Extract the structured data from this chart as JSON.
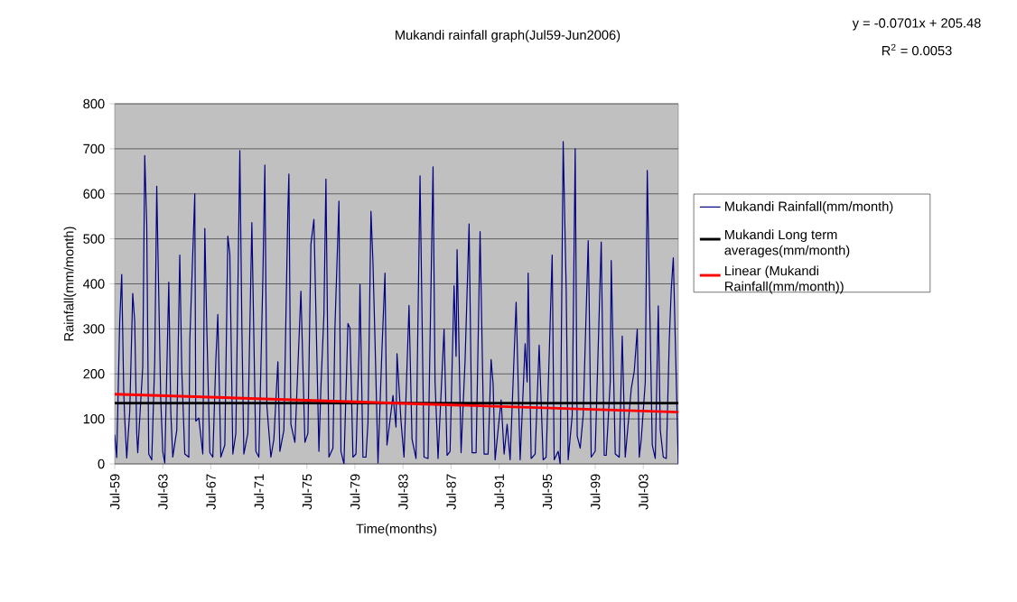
{
  "chart_data": {
    "type": "line",
    "title": "Mukandi rainfall graph(Jul59-Jun2006)",
    "xlabel": "Time(months)",
    "ylabel": "Rainfall(mm/month)",
    "annotations": [
      "y = -0.0701x + 205.48",
      "R$^{2}$ = 0.0053"
    ],
    "xlim": [
      "1959-07",
      "2006-06"
    ],
    "xticks": [
      {
        "value": "1959-07",
        "label": "Jul-59"
      },
      {
        "value": "1963-07",
        "label": "Jul-63"
      },
      {
        "value": "1967-07",
        "label": "Jul-67"
      },
      {
        "value": "1971-07",
        "label": "Jul-71"
      },
      {
        "value": "1975-07",
        "label": "Jul-75"
      },
      {
        "value": "1979-07",
        "label": "Jul-79"
      },
      {
        "value": "1983-07",
        "label": "Jul-83"
      },
      {
        "value": "1987-07",
        "label": "Jul-87"
      },
      {
        "value": "1991-07",
        "label": "Jul-91"
      },
      {
        "value": "1995-07",
        "label": "Jul-95"
      },
      {
        "value": "1999-07",
        "label": "Jul-99"
      },
      {
        "value": "2003-07",
        "label": "Jul-03"
      }
    ],
    "ylim": [
      0,
      800
    ],
    "yticks": [
      0,
      100,
      200,
      300,
      400,
      500,
      600,
      700,
      800
    ],
    "grid": "y",
    "legend": "right",
    "marker": "none",
    "line_style": "solid",
    "series": [
      {
        "name": "Mukandi Rainfall(mm/month)",
        "color": "#000080",
        "x": [
          "1959-07",
          "1959-09",
          "1959-12",
          "1960-02",
          "1960-04",
          "1960-05",
          "1960-07",
          "1960-10",
          "1961-01",
          "1961-03",
          "1961-05",
          "1961-06",
          "1961-11",
          "1962-01",
          "1962-03",
          "1962-05",
          "1962-08",
          "1962-11",
          "1963-01",
          "1963-02",
          "1963-05",
          "1963-07",
          "1963-09",
          "1964-01",
          "1964-03",
          "1964-05",
          "1964-09",
          "1964-12",
          "1965-02",
          "1965-05",
          "1965-09",
          "1965-10",
          "1966-03",
          "1966-04",
          "1966-07",
          "1966-11",
          "1967-01",
          "1967-03",
          "1967-06",
          "1967-09",
          "1967-12",
          "1968-02",
          "1968-05",
          "1968-09",
          "1968-12",
          "1969-02",
          "1969-05",
          "1969-08",
          "1969-12",
          "1970-02",
          "1970-04",
          "1970-08",
          "1970-12",
          "1971-04",
          "1971-07",
          "1971-11",
          "1972-01",
          "1972-03",
          "1972-07",
          "1972-10",
          "1973-02",
          "1973-04",
          "1973-08",
          "1973-12",
          "1974-01",
          "1974-03",
          "1974-07",
          "1975-01",
          "1975-05",
          "1975-08",
          "1975-11",
          "1976-02",
          "1976-07",
          "1976-09",
          "1976-12",
          "1977-02",
          "1977-05",
          "1977-09",
          "1977-11",
          "1978-03",
          "1978-05",
          "1978-08",
          "1978-12",
          "1979-02",
          "1979-05",
          "1979-08",
          "1979-11",
          "1979-12",
          "1980-03",
          "1980-06",
          "1980-08",
          "1980-11",
          "1981-01",
          "1981-03",
          "1981-06",
          "1981-10",
          "1982-01",
          "1982-03",
          "1982-09",
          "1982-12",
          "1983-01",
          "1983-05",
          "1983-08",
          "1984-01",
          "1984-04",
          "1984-08",
          "1984-12",
          "1985-04",
          "1985-08",
          "1986-01",
          "1986-03",
          "1986-06",
          "1986-12",
          "1987-03",
          "1987-06",
          "1987-10",
          "1987-12",
          "1988-01",
          "1988-05",
          "1988-09",
          "1989-01",
          "1989-04",
          "1989-08",
          "1989-12",
          "1990-04",
          "1990-08",
          "1990-11",
          "1991-01",
          "1991-03",
          "1991-09",
          "1991-12",
          "1992-03",
          "1992-06",
          "1992-12",
          "1993-04",
          "1993-05",
          "1993-09",
          "1993-11",
          "1993-12",
          "1994-03",
          "1994-07",
          "1994-11",
          "1995-03",
          "1995-06",
          "1995-12",
          "1996-02",
          "1996-06",
          "1996-08",
          "1996-11",
          "1997-02",
          "1997-04",
          "1997-08",
          "1997-11",
          "1998-01",
          "1998-04",
          "1998-07",
          "1998-12",
          "1999-01",
          "1999-03",
          "1999-07",
          "2000-01",
          "2000-04",
          "2000-06",
          "2000-10",
          "2000-11",
          "2001-03",
          "2001-07",
          "2001-10",
          "2002-01",
          "2002-07",
          "2002-10",
          "2003-01",
          "2003-03",
          "2003-05",
          "2003-09",
          "2003-11",
          "2004-04",
          "2004-07",
          "2004-10",
          "2004-12",
          "2005-03",
          "2005-06",
          "2005-09",
          "2005-11",
          "2006-01",
          "2006-06"
        ],
        "values": [
          65,
          14,
          316,
          421,
          162,
          100,
          13,
          116,
          379,
          316,
          68,
          25,
          215,
          685,
          533,
          22,
          9,
          229,
          617,
          493,
          142,
          28,
          2,
          404,
          116,
          15,
          75,
          464,
          208,
          22,
          15,
          272,
          600,
          95,
          102,
          22,
          523,
          302,
          25,
          15,
          229,
          332,
          15,
          42,
          506,
          466,
          22,
          68,
          696,
          309,
          22,
          68,
          536,
          28,
          15,
          413,
          664,
          129,
          15,
          55,
          227,
          28,
          75,
          567,
          644,
          88,
          48,
          384,
          48,
          68,
          488,
          543,
          28,
          172,
          332,
          633,
          15,
          35,
          302,
          584,
          28,
          0,
          312,
          302,
          15,
          22,
          252,
          399,
          15,
          15,
          92,
          561,
          446,
          276,
          2,
          255,
          424,
          42,
          152,
          82,
          245,
          95,
          15,
          352,
          55,
          12,
          640,
          15,
          12,
          660,
          182,
          12,
          299,
          19,
          28,
          396,
          239,
          476,
          25,
          229,
          533,
          25,
          25,
          516,
          22,
          22,
          232,
          178,
          9,
          142,
          22,
          88,
          9,
          359,
          9,
          58,
          267,
          182,
          424,
          12,
          22,
          264,
          9,
          15,
          464,
          9,
          28,
          0,
          716,
          389,
          9,
          108,
          700,
          62,
          35,
          108,
          496,
          355,
          15,
          28,
          493,
          19,
          19,
          182,
          452,
          22,
          15,
          284,
          15,
          167,
          206,
          299,
          15,
          55,
          182,
          652,
          42,
          12,
          351,
          75,
          15,
          12,
          276,
          389,
          458,
          0
        ]
      },
      {
        "name": "Mukandi Long term averages(mm/month)",
        "color": "#000000",
        "x": [
          "1959-07",
          "2006-06"
        ],
        "values": [
          135,
          135
        ]
      },
      {
        "name": "Linear (Mukandi Rainfall(mm/month))",
        "color": "#ff0000",
        "x": [
          "1959-07",
          "2006-06"
        ],
        "values": [
          155,
          115
        ]
      }
    ]
  }
}
